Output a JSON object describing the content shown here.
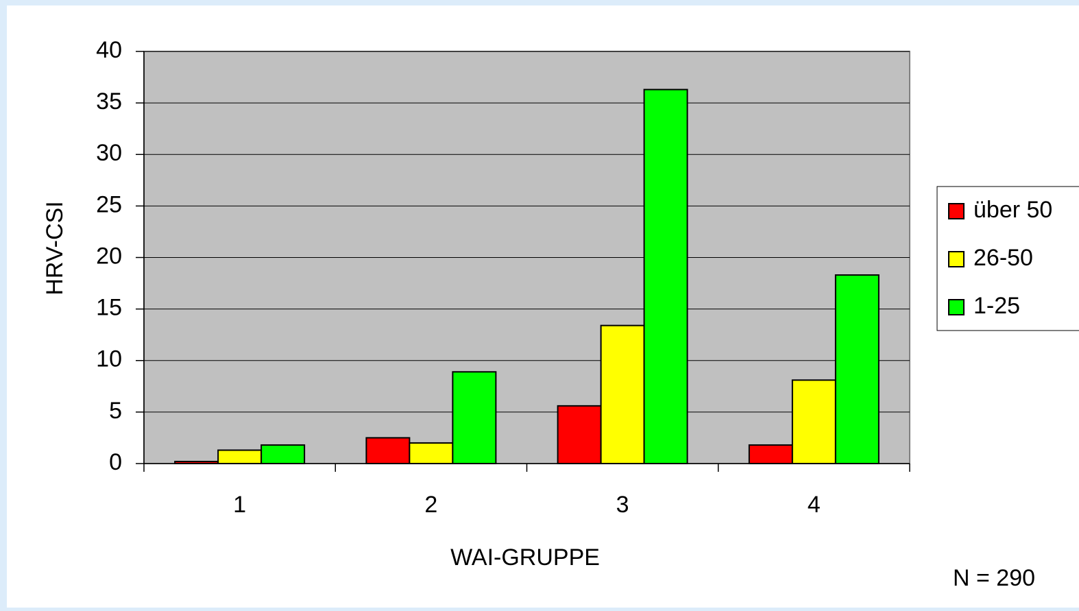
{
  "chart_data": {
    "type": "bar",
    "x_label": "WAI-GRUPPE",
    "y_label": "HRV-CSI",
    "annotation": "N = 290",
    "categories": [
      "1",
      "2",
      "3",
      "4"
    ],
    "series": [
      {
        "name": "über 50",
        "color": "#ff0000",
        "values": [
          0.2,
          2.5,
          5.6,
          1.8
        ]
      },
      {
        "name": "26-50",
        "color": "#ffff00",
        "values": [
          1.3,
          2.0,
          13.4,
          8.1
        ]
      },
      {
        "name": "1-25",
        "color": "#00ff00",
        "values": [
          1.8,
          8.9,
          36.3,
          18.3
        ]
      }
    ],
    "ylim": [
      0,
      40
    ],
    "yticks": [
      0,
      5,
      10,
      15,
      20,
      25,
      30,
      35,
      40
    ],
    "grid": true,
    "legend": "right"
  }
}
